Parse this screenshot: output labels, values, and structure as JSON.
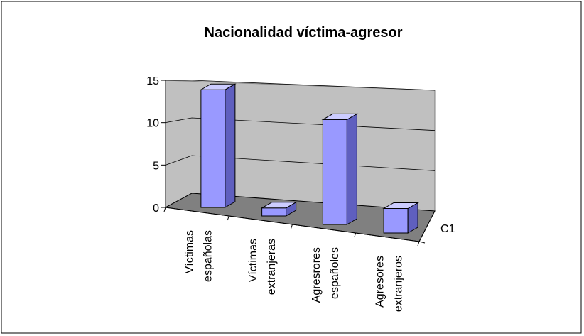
{
  "chart_data": {
    "type": "bar3d",
    "title": "Nacionalidad víctima-agresor",
    "categories": [
      "Víctimas españolas",
      "Víctimas extranjeras",
      "Agresrores españoles",
      "Agresores extranjeros"
    ],
    "series": [
      {
        "name": "C1",
        "color": "#9999ff",
        "values": [
          15,
          1,
          13,
          3
        ]
      }
    ],
    "ylim": [
      0,
      15
    ],
    "yticks": [
      0,
      5,
      10,
      15
    ],
    "grid": true
  }
}
